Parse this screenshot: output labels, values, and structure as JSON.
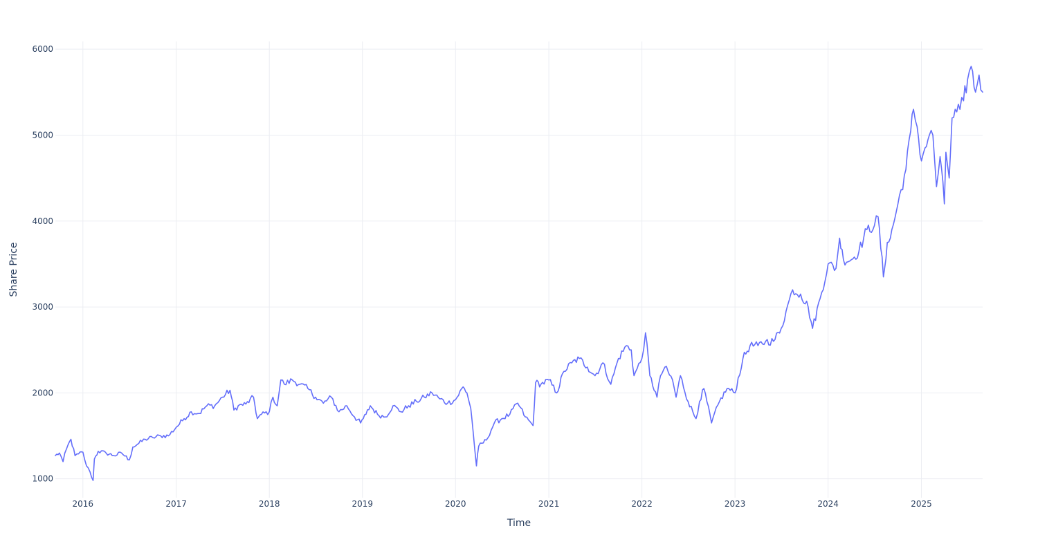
{
  "chart_data": {
    "type": "line",
    "title": "",
    "xlabel": "Time",
    "ylabel": "Share Price",
    "x_ticks": [
      "2016",
      "2017",
      "2018",
      "2019",
      "2020",
      "2021",
      "2022",
      "2023",
      "2024",
      "2025"
    ],
    "y_ticks": [
      1000,
      2000,
      3000,
      4000,
      5000,
      6000
    ],
    "xlim": [
      "2015-09-15",
      "2025-08-29"
    ],
    "ylim": [
      780,
      6090
    ],
    "grid": true,
    "legend": "none",
    "colors": {
      "series": "#636efa",
      "grid": "#ebedf2",
      "text": "#2a3f5f",
      "background": "#ffffff"
    },
    "series": [
      {
        "x": [
          "2015-09-15",
          "2015-10-01",
          "2015-10-15",
          "2015-10-29",
          "2015-11-15",
          "2015-12-01",
          "2015-12-15",
          "2016-01-01",
          "2016-01-15",
          "2016-01-29",
          "2016-02-10",
          "2016-02-15",
          "2016-03-01",
          "2016-04-01",
          "2016-05-01",
          "2016-06-01",
          "2016-07-01",
          "2016-07-15",
          "2016-08-01",
          "2016-09-01",
          "2016-10-01",
          "2016-11-01",
          "2016-12-01",
          "2017-01-01",
          "2017-02-01",
          "2017-03-01",
          "2017-04-01",
          "2017-05-01",
          "2017-06-01",
          "2017-07-01",
          "2017-07-31",
          "2017-08-15",
          "2017-09-01",
          "2017-10-01",
          "2017-10-31",
          "2017-11-15",
          "2017-12-01",
          "2018-01-01",
          "2018-01-15",
          "2018-02-01",
          "2018-02-15",
          "2018-03-01",
          "2018-04-01",
          "2018-05-01",
          "2018-06-01",
          "2018-07-01",
          "2018-08-01",
          "2018-09-01",
          "2018-10-01",
          "2018-11-01",
          "2018-12-01",
          "2018-12-25",
          "2019-01-15",
          "2019-02-01",
          "2019-03-01",
          "2019-04-01",
          "2019-05-01",
          "2019-06-01",
          "2019-07-01",
          "2019-08-01",
          "2019-09-01",
          "2019-10-01",
          "2019-11-01",
          "2019-12-01",
          "2020-01-01",
          "2020-01-31",
          "2020-02-15",
          "2020-03-01",
          "2020-03-10",
          "2020-03-23",
          "2020-04-01",
          "2020-05-01",
          "2020-06-01",
          "2020-07-01",
          "2020-08-01",
          "2020-09-01",
          "2020-10-01",
          "2020-10-31",
          "2020-11-10",
          "2020-12-01",
          "2021-01-01",
          "2021-02-01",
          "2021-03-01",
          "2021-04-01",
          "2021-05-01",
          "2021-06-01",
          "2021-07-01",
          "2021-08-01",
          "2021-09-01",
          "2021-10-01",
          "2021-11-01",
          "2021-11-20",
          "2021-12-01",
          "2022-01-01",
          "2022-01-15",
          "2022-02-01",
          "2022-03-01",
          "2022-03-15",
          "2022-04-01",
          "2022-05-01",
          "2022-05-15",
          "2022-06-01",
          "2022-07-01",
          "2022-08-01",
          "2022-08-15",
          "2022-09-01",
          "2022-10-01",
          "2022-11-01",
          "2022-12-01",
          "2023-01-01",
          "2023-02-01",
          "2023-03-01",
          "2023-04-01",
          "2023-05-01",
          "2023-06-01",
          "2023-07-01",
          "2023-07-20",
          "2023-08-15",
          "2023-09-15",
          "2023-10-15",
          "2023-11-01",
          "2023-12-01",
          "2024-01-01",
          "2024-02-01",
          "2024-02-15",
          "2024-03-01",
          "2024-04-01",
          "2024-05-01",
          "2024-06-01",
          "2024-07-01",
          "2024-07-15",
          "2024-08-05",
          "2024-08-20",
          "2024-09-01",
          "2024-10-01",
          "2024-11-01",
          "2024-11-20",
          "2024-12-01",
          "2024-12-15",
          "2025-01-01",
          "2025-01-15",
          "2025-02-01",
          "2025-02-15",
          "2025-03-01",
          "2025-03-15",
          "2025-04-01",
          "2025-04-07",
          "2025-04-20",
          "2025-05-01",
          "2025-06-01",
          "2025-06-15",
          "2025-07-01",
          "2025-07-15",
          "2025-08-01",
          "2025-08-15",
          "2025-08-29"
        ],
        "values": [
          1270,
          1300,
          1200,
          1350,
          1460,
          1270,
          1290,
          1310,
          1150,
          1080,
          980,
          1230,
          1320,
          1300,
          1270,
          1300,
          1220,
          1370,
          1400,
          1460,
          1480,
          1500,
          1500,
          1600,
          1700,
          1780,
          1760,
          1850,
          1850,
          1950,
          2030,
          1800,
          1850,
          1870,
          1950,
          1700,
          1750,
          1780,
          1950,
          1850,
          2150,
          2100,
          2150,
          2100,
          2050,
          1950,
          1880,
          1950,
          1780,
          1850,
          1720,
          1650,
          1750,
          1850,
          1750,
          1720,
          1850,
          1780,
          1850,
          1900,
          1950,
          2000,
          1930,
          1880,
          1920,
          2070,
          2000,
          1820,
          1550,
          1150,
          1380,
          1450,
          1650,
          1700,
          1750,
          1880,
          1720,
          1620,
          2120,
          2100,
          2150,
          2000,
          2250,
          2350,
          2400,
          2300,
          2200,
          2350,
          2100,
          2400,
          2550,
          2500,
          2200,
          2400,
          2700,
          2200,
          1950,
          2200,
          2300,
          2150,
          1950,
          2200,
          1900,
          1700,
          1900,
          2050,
          1650,
          1900,
          2050,
          2000,
          2400,
          2550,
          2550,
          2600,
          2600,
          2750,
          2950,
          3200,
          3150,
          3000,
          2750,
          3100,
          3500,
          3450,
          3800,
          3550,
          3550,
          3650,
          3900,
          3950,
          4050,
          3350,
          3750,
          3800,
          4200,
          4600,
          5050,
          5300,
          5100,
          4700,
          4850,
          5000,
          5000,
          4400,
          4750,
          4200,
          4800,
          4500,
          5200,
          5300,
          5400,
          5650,
          5800,
          5500,
          5700,
          5500
        ]
      }
    ]
  }
}
